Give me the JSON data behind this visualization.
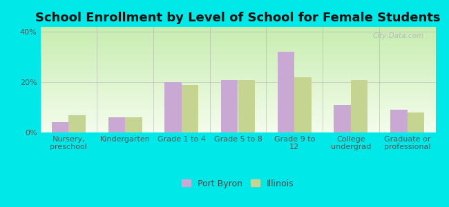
{
  "title": "School Enrollment by Level of School for Female Students",
  "categories": [
    "Nursery,\npreschool",
    "Kindergarten",
    "Grade 1 to 4",
    "Grade 5 to 8",
    "Grade 9 to\n12",
    "College\nundergrad",
    "Graduate or\nprofessional"
  ],
  "port_byron": [
    4,
    6,
    20,
    21,
    32,
    11,
    9
  ],
  "illinois": [
    7,
    6,
    19,
    21,
    22,
    21,
    8
  ],
  "port_byron_color": "#c9a8d4",
  "illinois_color": "#c5d490",
  "bar_width": 0.3,
  "ylim": [
    0,
    42
  ],
  "yticks": [
    0,
    20,
    40
  ],
  "ytick_labels": [
    "0%",
    "20%",
    "40%"
  ],
  "background_color": "#00e8e8",
  "gradient_topleft": "#c8e8b0",
  "gradient_topright": "#e8f8f8",
  "gradient_bottom": "#f0fce8",
  "legend_labels": [
    "Port Byron",
    "Illinois"
  ],
  "title_fontsize": 13,
  "tick_fontsize": 8.0,
  "legend_fontsize": 9,
  "watermark": "City-Data.com"
}
